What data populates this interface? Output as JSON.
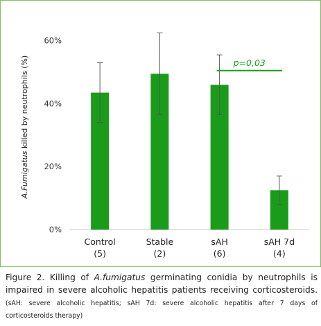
{
  "chart_data": {
    "type": "bar",
    "categories": [
      "Control\n(5)",
      "Stable\n(2)",
      "sAH\n(6)",
      "sAH 7d\n(4)"
    ],
    "series": [
      {
        "values": [
          43.5,
          49.5,
          46.0,
          12.5
        ],
        "error": [
          9.5,
          13.0,
          9.5,
          4.5
        ]
      }
    ],
    "ylabel_italic": "A.Fumigatus",
    "ylabel_rest": " killed by neutrophils (%)",
    "yticks": [
      "0%",
      "20%",
      "40%",
      "60%"
    ],
    "ylim": [
      0,
      65
    ],
    "annotation": {
      "text": "p=0,03",
      "from_category": "sAH\n(6)",
      "to_category": "sAH 7d\n(4)"
    },
    "bar_color": "#1a9c1a",
    "grid": false
  },
  "caption": {
    "lead": "Figure 2. Killing of ",
    "italic": "A.fumigatus",
    "rest": " germinating conidia by neutrophils is impaired in severe alcoholic hepatitis patients receiving corticosteroids.",
    "note": "(sAH: severe alcoholic hepatitis; sAH 7d: severe alcoholic hepatitis after 7 days of corticosteroids therapy)"
  }
}
